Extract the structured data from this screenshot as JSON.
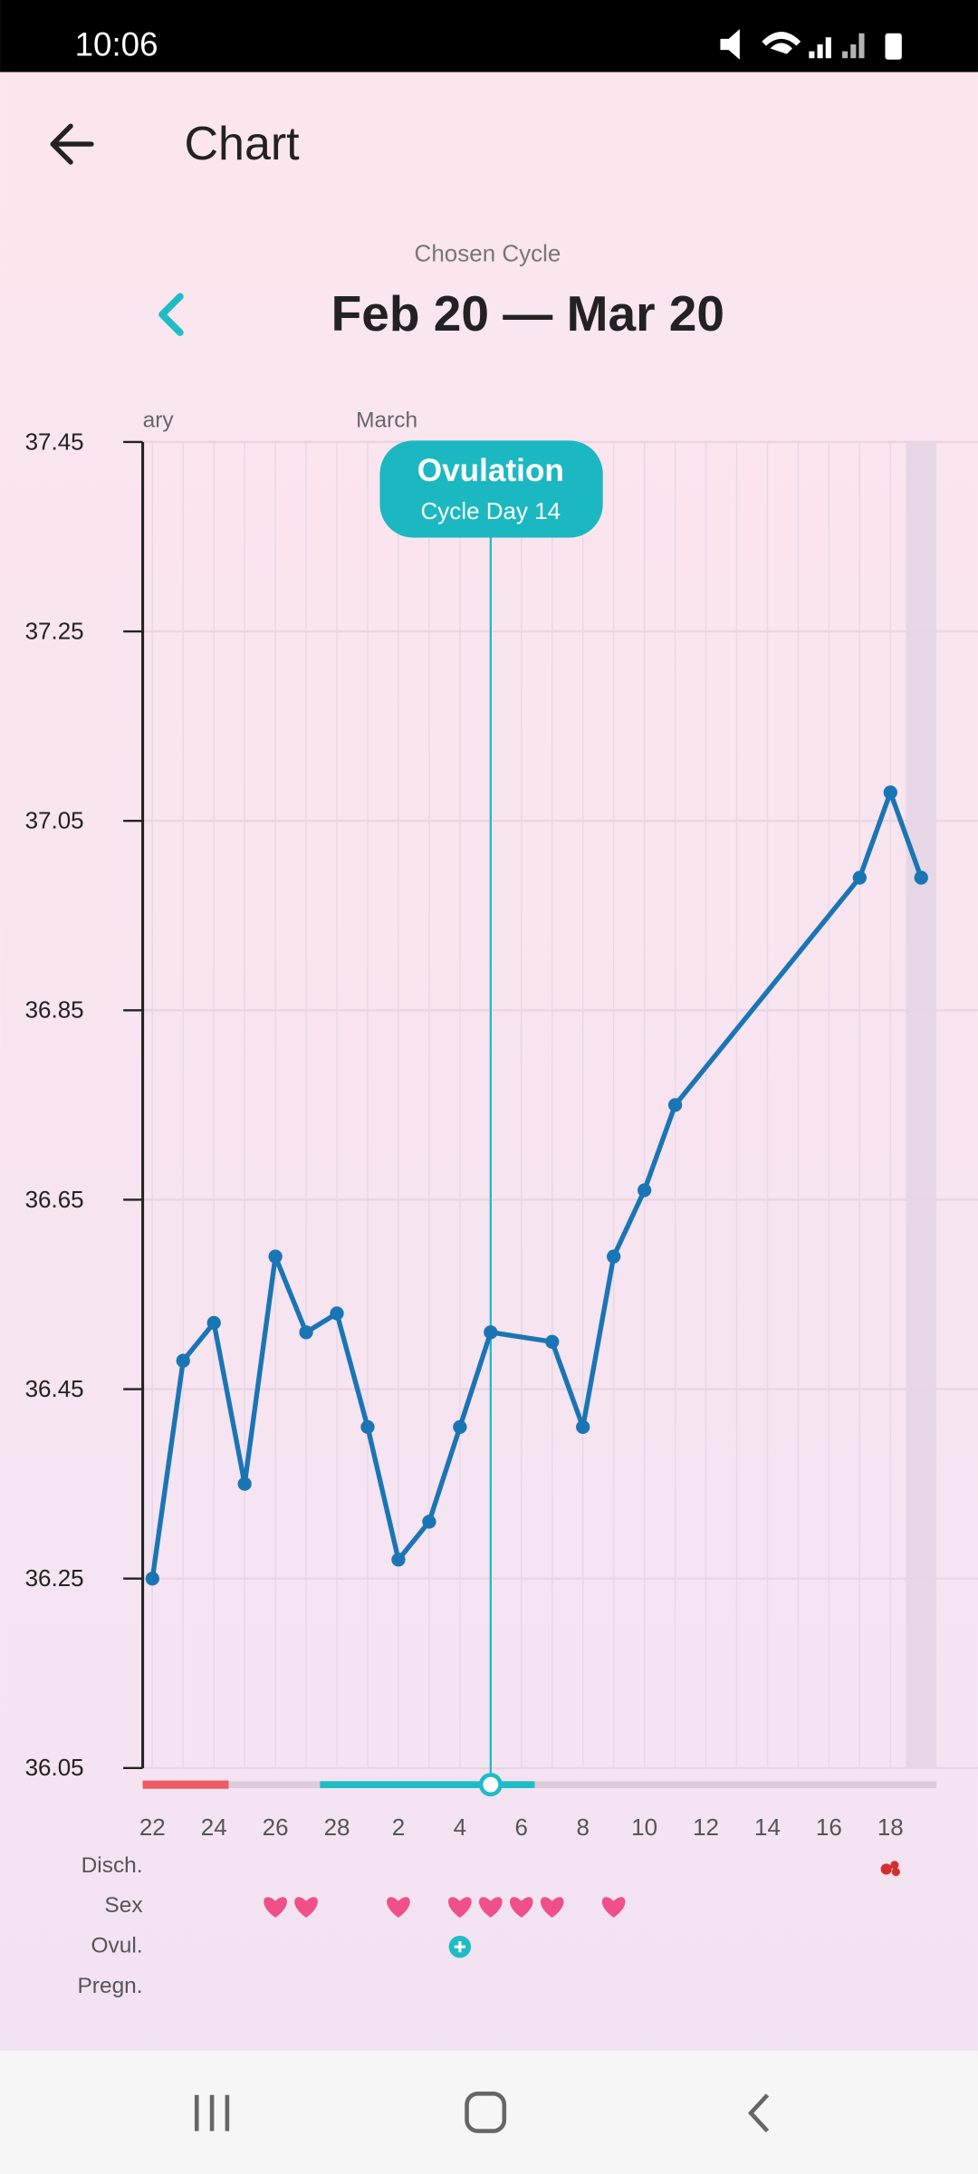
{
  "status_bar": {
    "time": "10:06"
  },
  "header": {
    "title": "Chart"
  },
  "cycle": {
    "label": "Chosen Cycle",
    "range": "Feb 20 — Mar 20"
  },
  "chart_data": {
    "type": "line",
    "categories": [
      "22",
      null,
      "24",
      null,
      "26",
      null,
      "28",
      null,
      "2",
      null,
      "4",
      null,
      "6",
      null,
      "8",
      null,
      "10",
      null,
      "12",
      null,
      "14",
      null,
      "16",
      null,
      "18",
      null
    ],
    "values": [
      36.25,
      36.48,
      36.52,
      36.35,
      36.59,
      36.51,
      36.53,
      36.41,
      36.27,
      36.31,
      36.41,
      36.51,
      null,
      36.5,
      36.41,
      36.59,
      36.66,
      36.75,
      null,
      null,
      null,
      null,
      null,
      36.99,
      37.08,
      36.99
    ],
    "color": "#1a75b5",
    "connect_gaps": true,
    "ylim": [
      36.05,
      37.45
    ],
    "yticks": [
      36.05,
      36.25,
      36.45,
      36.65,
      36.85,
      37.05,
      37.25,
      37.45
    ],
    "grid": true,
    "month_labels": [
      "ary",
      "March"
    ],
    "annotation": {
      "title": "Ovulation",
      "subtitle": "Cycle Day 14"
    },
    "rows": [
      "Disch.",
      "Sex",
      "Ovul.",
      "Pregn."
    ],
    "markers": {
      "discharge": [
        false,
        false,
        false,
        false,
        false,
        false,
        false,
        false,
        false,
        false,
        false,
        false,
        false,
        false,
        false,
        false,
        false,
        false,
        false,
        false,
        false,
        false,
        false,
        false,
        true,
        false
      ],
      "sex": [
        false,
        false,
        false,
        false,
        true,
        true,
        false,
        false,
        true,
        false,
        true,
        true,
        true,
        true,
        false,
        true,
        false,
        false,
        false,
        false,
        false,
        false,
        false,
        false,
        false,
        false
      ],
      "ovulation": [
        false,
        false,
        false,
        false,
        false,
        false,
        false,
        false,
        false,
        false,
        true,
        false,
        false,
        false,
        false,
        false,
        false,
        false,
        false,
        false,
        false,
        false,
        false,
        false,
        false,
        false
      ]
    }
  }
}
